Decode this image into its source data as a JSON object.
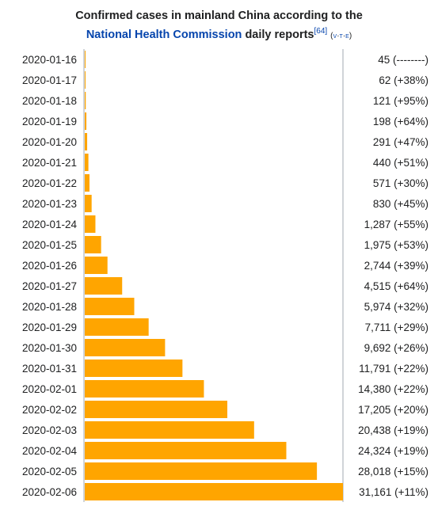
{
  "title": {
    "line1": "Confirmed cases in mainland China according to the",
    "link_text": "National Health Commission",
    "after_link": " daily reports",
    "citation": "[64]",
    "vte_open": "(",
    "vte_v": "v",
    "vte_sep1": "·",
    "vte_t": "t",
    "vte_sep2": "·",
    "vte_e": "e",
    "vte_close": ")"
  },
  "colors": {
    "bar": "#ffa500",
    "axis": "#a2a9b1",
    "text": "#202122",
    "link": "#0645ad"
  },
  "chart_data": {
    "type": "bar",
    "orientation": "horizontal",
    "categories": [
      "2020-01-16",
      "2020-01-17",
      "2020-01-18",
      "2020-01-19",
      "2020-01-20",
      "2020-01-21",
      "2020-01-22",
      "2020-01-23",
      "2020-01-24",
      "2020-01-25",
      "2020-01-26",
      "2020-01-27",
      "2020-01-28",
      "2020-01-29",
      "2020-01-30",
      "2020-01-31",
      "2020-02-01",
      "2020-02-02",
      "2020-02-03",
      "2020-02-04",
      "2020-02-05",
      "2020-02-06"
    ],
    "values": [
      45,
      62,
      121,
      198,
      291,
      440,
      571,
      830,
      1287,
      1975,
      2744,
      4515,
      5974,
      7711,
      9692,
      11791,
      14380,
      17205,
      20438,
      24324,
      28018,
      31161
    ],
    "value_labels": [
      "45 (--------)",
      "62 (+38%)",
      "121 (+95%)",
      "198 (+64%)",
      "291 (+47%)",
      "440 (+51%)",
      "571 (+30%)",
      "830 (+45%)",
      "1,287 (+55%)",
      "1,975 (+53%)",
      "2,744 (+39%)",
      "4,515 (+64%)",
      "5,974 (+32%)",
      "7,711 (+29%)",
      "9,692 (+26%)",
      "11,791 (+22%)",
      "14,380 (+22%)",
      "17,205 (+20%)",
      "20,438 (+19%)",
      "24,324 (+19%)",
      "28,018 (+15%)",
      "31,161 (+11%)"
    ],
    "xlim": [
      0,
      31161
    ],
    "grid": false
  }
}
